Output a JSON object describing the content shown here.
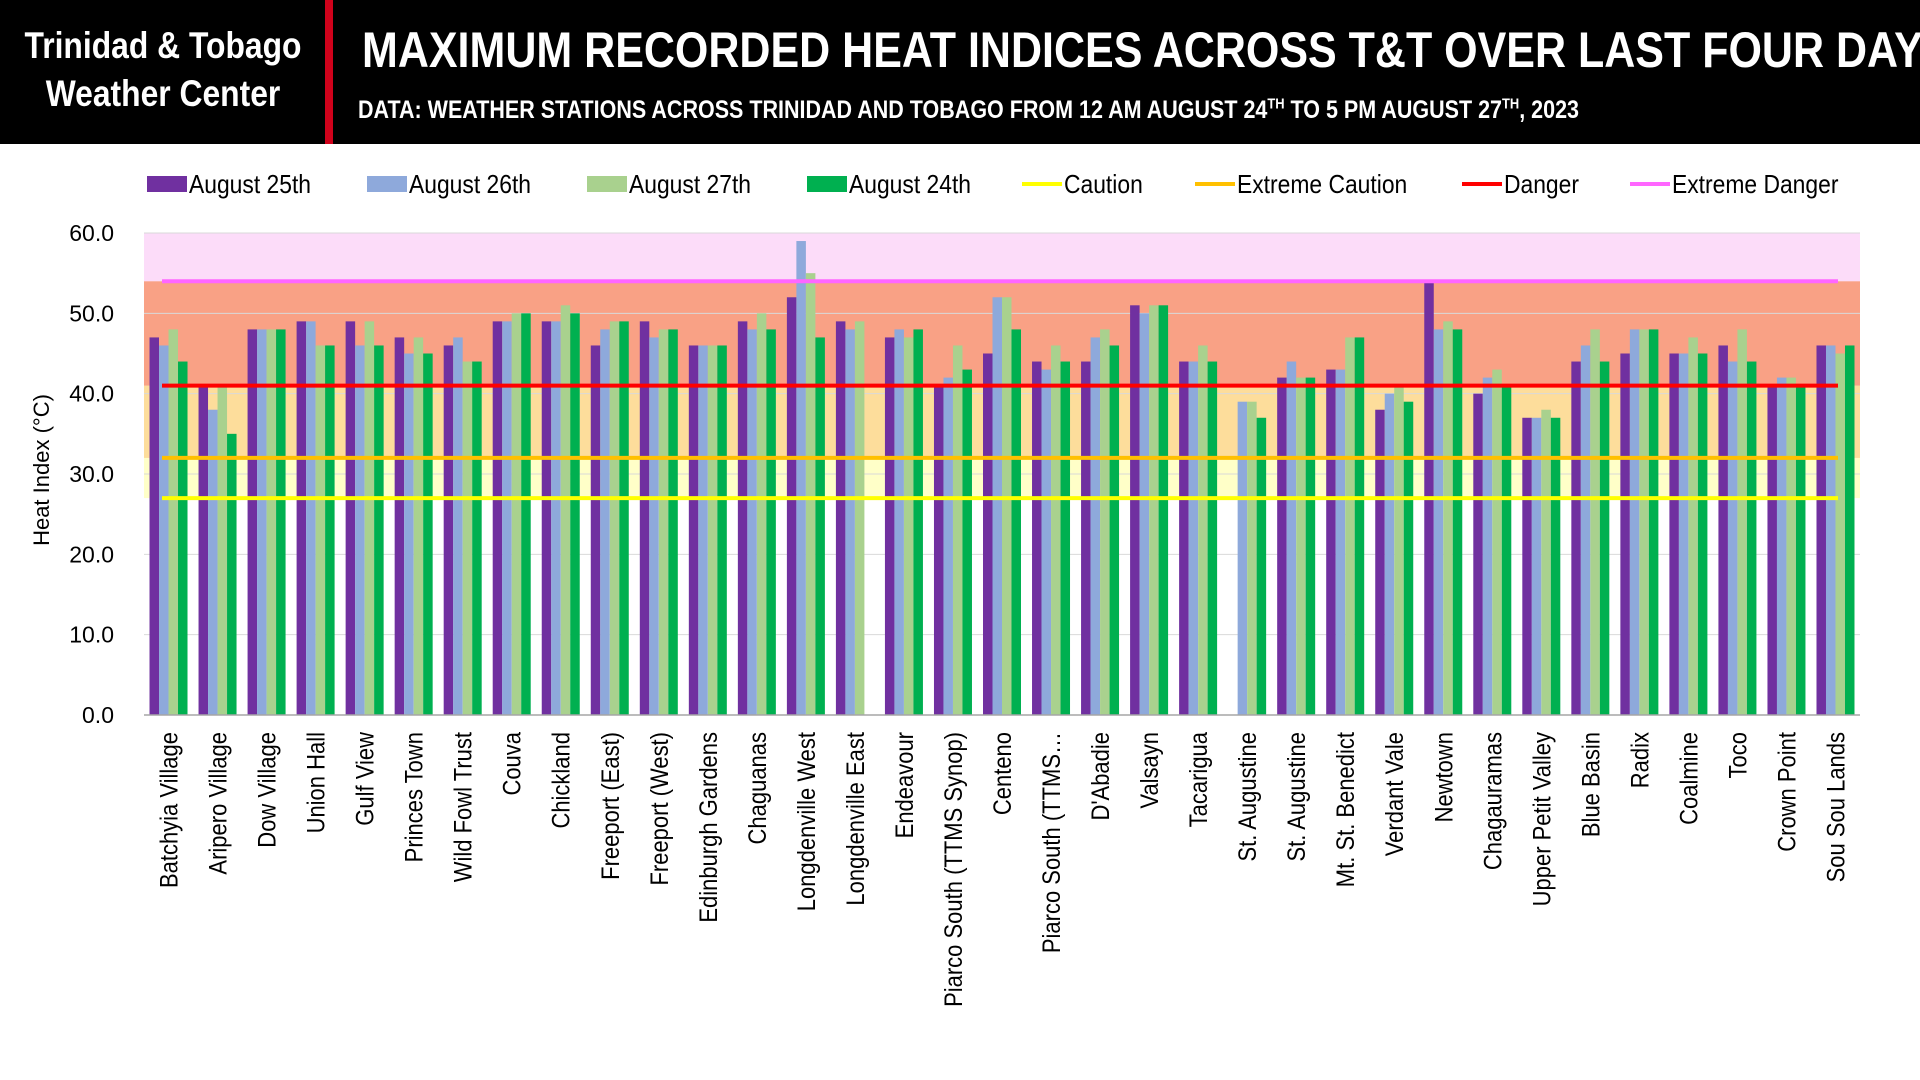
{
  "header": {
    "brand_line1": "Trinidad & Tobago",
    "brand_line2": "Weather Center",
    "title": "MAXIMUM RECORDED HEAT INDICES ACROSS T&T OVER LAST FOUR DAYS",
    "subtitle_part1": "DATA: WEATHER STATIONS ACROSS TRINIDAD AND TOBAGO FROM 12 AM AUGUST 24",
    "subtitle_sup1": "TH",
    "subtitle_part2": " TO 5 PM AUGUST 27",
    "subtitle_sup2": "TH",
    "subtitle_part3": ", 2023"
  },
  "colors": {
    "header_bg": "#000000",
    "accent_red": "#d0021b",
    "august_25": "#7030a0",
    "august_26": "#8ea9db",
    "august_27": "#a9d18e",
    "august_24": "#00b050",
    "caution": "#ffff00",
    "extreme_caution": "#ffc000",
    "danger": "#ff0000",
    "extreme_danger": "#ff66ff"
  },
  "chart_data": {
    "type": "bar",
    "ylabel": "Heat Index (°C)",
    "ylim": [
      0,
      60
    ],
    "yticks": [
      "0.0",
      "10.0",
      "20.0",
      "30.0",
      "40.0",
      "50.0",
      "60.0"
    ],
    "grid": true,
    "legend_position": "top",
    "categories": [
      "Batchyia Village",
      "Aripero Village",
      "Dow Village",
      "Union Hall",
      "Gulf View",
      "Princes Town",
      "Wild Fowl Trust",
      "Couva",
      "Chickland",
      "Freeport (East)",
      "Freeport (West)",
      "Edinburgh Gardens",
      "Chaguanas",
      "Longdenville West",
      "Longdenville East",
      "Endeavour",
      "Piarco South (TTMS Synop)",
      "Centeno",
      "Piarco South (TTMS…",
      "D'Abadie",
      "Valsayn",
      "Tacarigua",
      "St. Augustine",
      "St. Augustine",
      "Mt. St. Benedict",
      "Verdant Vale",
      "Newtown",
      "Chagauramas",
      "Upper Petit Valley",
      "Blue Basin",
      "Radix",
      "Coalmine",
      "Toco",
      "Crown Point",
      "Sou Sou Lands"
    ],
    "series": [
      {
        "name": "August 25th",
        "color": "#7030a0",
        "values": [
          47,
          41,
          48,
          49,
          49,
          47,
          46,
          49,
          49,
          46,
          49,
          46,
          49,
          52,
          49,
          47,
          41,
          45,
          44,
          44,
          51,
          44,
          null,
          42,
          43,
          38,
          54,
          40,
          37,
          44,
          45,
          45,
          46,
          41,
          46
        ]
      },
      {
        "name": "August 26th",
        "color": "#8ea9db",
        "values": [
          46,
          38,
          48,
          49,
          46,
          45,
          47,
          49,
          49,
          48,
          47,
          46,
          48,
          59,
          48,
          48,
          42,
          52,
          43,
          47,
          50,
          44,
          39,
          44,
          43,
          40,
          48,
          42,
          37,
          46,
          48,
          45,
          44,
          42,
          46
        ]
      },
      {
        "name": "August 27th",
        "color": "#a9d18e",
        "values": [
          48,
          41,
          48,
          46,
          49,
          47,
          44,
          50,
          51,
          49,
          48,
          46,
          50,
          55,
          49,
          47,
          46,
          52,
          46,
          48,
          51,
          46,
          39,
          42,
          47,
          41,
          49,
          43,
          38,
          48,
          48,
          47,
          48,
          42,
          45
        ]
      },
      {
        "name": "August 24th",
        "color": "#00b050",
        "values": [
          44,
          35,
          48,
          46,
          46,
          45,
          44,
          50,
          50,
          49,
          48,
          46,
          48,
          47,
          null,
          48,
          43,
          48,
          44,
          46,
          51,
          44,
          37,
          42,
          47,
          39,
          48,
          41,
          37,
          44,
          48,
          45,
          44,
          41,
          46
        ]
      }
    ],
    "thresholds": [
      {
        "name": "Caution",
        "value": 27,
        "color": "#ffff00"
      },
      {
        "name": "Extreme Caution",
        "value": 32,
        "color": "#ffc000"
      },
      {
        "name": "Danger",
        "value": 41,
        "color": "#ff0000"
      },
      {
        "name": "Extreme Danger",
        "value": 54,
        "color": "#ff66ff"
      }
    ]
  }
}
